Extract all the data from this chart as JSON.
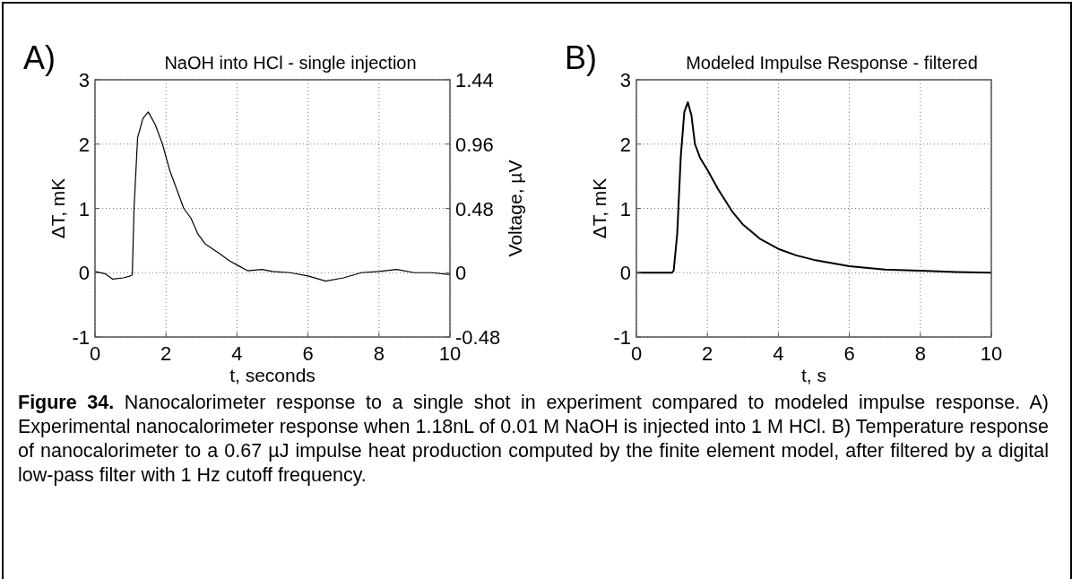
{
  "chart_data": [
    {
      "type": "line",
      "title": "NaOH into HCl - single injection",
      "xlabel": "t, seconds",
      "ylabel": "ΔT, mK",
      "y2label": "Voltage, µV",
      "annotations": [
        "A)",
        "Figure 34.",
        "Nanocalorimeter response to a single shot in experiment compared to modeled impulse response. A) Experimental nanocalorimeter response when 1.18nL of 0.01 M NaOH is injected into 1 M HCl. B) Temperature response of nanocalorimeter to a 0.67 µJ impulse heat production computed by the finite element model, after filtered by a digital low-pass filter with 1 Hz cutoff frequency."
      ],
      "x": [
        0,
        0.3,
        0.5,
        0.8,
        1.0,
        1.05,
        1.1,
        1.2,
        1.35,
        1.5,
        1.7,
        1.9,
        2.1,
        2.3,
        2.5,
        2.7,
        2.9,
        3.1,
        3.5,
        3.8,
        4.0,
        4.3,
        4.7,
        5,
        5.5,
        6,
        6.5,
        7,
        7.5,
        8,
        8.5,
        9,
        9.5,
        10
      ],
      "series": [
        {
          "color": "#000000",
          "values": [
            0.02,
            -0.02,
            -0.1,
            -0.08,
            -0.05,
            -0.03,
            1.0,
            2.1,
            2.4,
            2.5,
            2.3,
            2.0,
            1.6,
            1.3,
            1.0,
            0.85,
            0.6,
            0.45,
            0.3,
            0.18,
            0.12,
            0.03,
            0.05,
            0.02,
            0.0,
            -0.05,
            -0.13,
            -0.08,
            0.0,
            0.02,
            0.05,
            0.0,
            0.0,
            -0.03
          ]
        }
      ],
      "xlim": [
        0,
        10
      ],
      "xticks": [
        0,
        2,
        4,
        6,
        8,
        10
      ],
      "ylim": [
        -1,
        3
      ],
      "yticks": [
        -1,
        0,
        1,
        2,
        3
      ],
      "y2lim": [
        -0.48,
        1.44
      ],
      "y2ticks": [
        -0.48,
        0,
        0.48,
        0.96,
        1.44
      ],
      "grid": true
    },
    {
      "type": "line",
      "title": "Modeled Impulse Response - filtered",
      "xlabel": "t, s",
      "ylabel": "ΔT, mK",
      "annotations": [
        "B)"
      ],
      "x": [
        0,
        1,
        1.05,
        1.15,
        1.25,
        1.35,
        1.45,
        1.55,
        1.65,
        1.8,
        2,
        2.3,
        2.7,
        3,
        3.5,
        4,
        4.5,
        5,
        5.5,
        6,
        7,
        8,
        9,
        10
      ],
      "series": [
        {
          "color": "#000000",
          "values": [
            0,
            0,
            0.03,
            0.6,
            1.8,
            2.5,
            2.65,
            2.45,
            2.0,
            1.78,
            1.6,
            1.3,
            0.95,
            0.75,
            0.52,
            0.37,
            0.27,
            0.2,
            0.15,
            0.1,
            0.05,
            0.03,
            0.01,
            0
          ]
        }
      ],
      "xlim": [
        0,
        10
      ],
      "xticks": [
        0,
        2,
        4,
        6,
        8,
        10
      ],
      "ylim": [
        -1,
        3
      ],
      "yticks": [
        -1,
        0,
        1,
        2,
        3
      ],
      "grid": true
    }
  ]
}
